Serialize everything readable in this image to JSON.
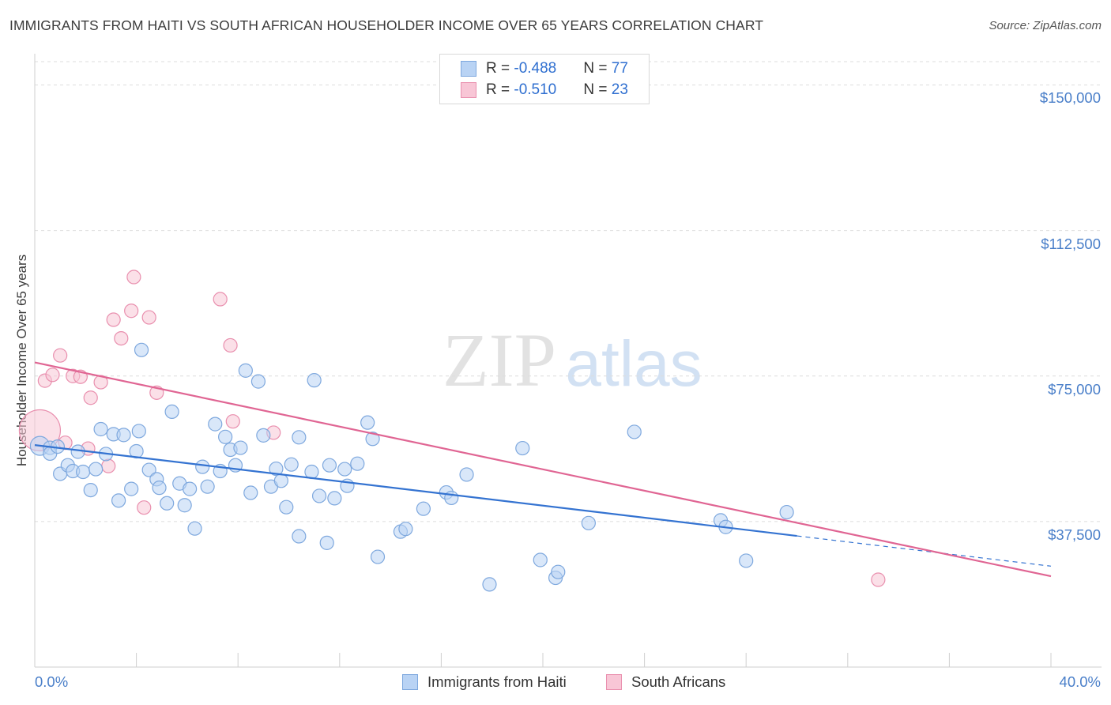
{
  "title": "IMMIGRANTS FROM HAITI VS SOUTH AFRICAN HOUSEHOLDER INCOME OVER 65 YEARS CORRELATION CHART",
  "source": "Source: ZipAtlas.com",
  "watermark": {
    "zip": "ZIP",
    "atlas": "atlas"
  },
  "legend": {
    "rows": [
      {
        "r_label": "R = ",
        "r_value": "-0.488",
        "n_label": "N = ",
        "n_value": "77"
      },
      {
        "r_label": "R = ",
        "r_value": "-0.510",
        "n_label": "N = ",
        "n_value": "23"
      }
    ]
  },
  "colors": {
    "haiti_fill": "#b9d3f4",
    "haiti_stroke": "#7ea8de",
    "haiti_line": "#3473d1",
    "sa_fill": "#f8c6d6",
    "sa_stroke": "#e98fae",
    "sa_line": "#e06593",
    "axis_text": "#4a7fc9",
    "grid": "#dcdcdc"
  },
  "chart_data": {
    "type": "scatter",
    "title": "IMMIGRANTS FROM HAITI VS SOUTH AFRICAN HOUSEHOLDER INCOME OVER 65 YEARS CORRELATION CHART",
    "xlabel": "",
    "ylabel": "Householder Income Over 65 years",
    "xlim": [
      0,
      40
    ],
    "ylim": [
      0,
      156000
    ],
    "x_tick_labels": [
      "0.0%",
      "40.0%"
    ],
    "y_ticks": [
      37500,
      75000,
      112500,
      150000
    ],
    "y_tick_labels": [
      "$37,500",
      "$75,000",
      "$112,500",
      "$150,000"
    ],
    "grid": "horizontal dashed",
    "legend_position": "top-center",
    "series": [
      {
        "name": "Immigrants from Haiti",
        "r": -0.488,
        "n": 77,
        "trend": {
          "x0": 0,
          "y0": 57200,
          "x1": 30,
          "y1": 33800,
          "dashed_to_x": 40,
          "dashed_to_y": 26000
        },
        "points": [
          [
            0.2,
            57000
          ],
          [
            0.6,
            56500
          ],
          [
            0.6,
            55000
          ],
          [
            0.9,
            56800
          ],
          [
            1.0,
            49800
          ],
          [
            1.3,
            52000
          ],
          [
            1.5,
            50500
          ],
          [
            1.7,
            55500
          ],
          [
            1.9,
            50300
          ],
          [
            2.2,
            45600
          ],
          [
            2.4,
            51000
          ],
          [
            2.6,
            61300
          ],
          [
            2.8,
            54900
          ],
          [
            3.1,
            60000
          ],
          [
            3.3,
            42900
          ],
          [
            3.5,
            59800
          ],
          [
            3.8,
            45900
          ],
          [
            4.0,
            55600
          ],
          [
            4.1,
            60800
          ],
          [
            4.2,
            81700
          ],
          [
            4.5,
            50800
          ],
          [
            4.8,
            48400
          ],
          [
            4.9,
            46200
          ],
          [
            5.2,
            42200
          ],
          [
            5.4,
            65800
          ],
          [
            5.7,
            47300
          ],
          [
            5.9,
            41700
          ],
          [
            6.1,
            45900
          ],
          [
            6.3,
            35700
          ],
          [
            6.6,
            51600
          ],
          [
            6.8,
            46500
          ],
          [
            7.1,
            62600
          ],
          [
            7.3,
            50500
          ],
          [
            7.5,
            59300
          ],
          [
            7.7,
            56000
          ],
          [
            7.9,
            52000
          ],
          [
            8.1,
            56500
          ],
          [
            8.3,
            76400
          ],
          [
            8.5,
            44900
          ],
          [
            8.8,
            73600
          ],
          [
            9.0,
            59700
          ],
          [
            9.3,
            46500
          ],
          [
            9.5,
            51100
          ],
          [
            9.7,
            48000
          ],
          [
            9.9,
            41200
          ],
          [
            10.1,
            52200
          ],
          [
            10.4,
            59200
          ],
          [
            10.4,
            33700
          ],
          [
            10.9,
            50300
          ],
          [
            11.0,
            73900
          ],
          [
            11.2,
            44100
          ],
          [
            11.5,
            32000
          ],
          [
            11.6,
            52000
          ],
          [
            11.8,
            43500
          ],
          [
            12.2,
            51000
          ],
          [
            12.3,
            46700
          ],
          [
            12.7,
            52400
          ],
          [
            13.1,
            63000
          ],
          [
            13.3,
            58800
          ],
          [
            13.5,
            28400
          ],
          [
            14.4,
            34900
          ],
          [
            14.6,
            35600
          ],
          [
            15.3,
            40800
          ],
          [
            16.2,
            45000
          ],
          [
            16.4,
            43600
          ],
          [
            17.0,
            49600
          ],
          [
            17.9,
            21300
          ],
          [
            19.2,
            56400
          ],
          [
            19.9,
            27600
          ],
          [
            20.5,
            23000
          ],
          [
            20.6,
            24500
          ],
          [
            21.8,
            37100
          ],
          [
            23.6,
            60600
          ],
          [
            27.0,
            37800
          ],
          [
            27.2,
            36100
          ],
          [
            28.0,
            27400
          ],
          [
            29.6,
            39900
          ]
        ]
      },
      {
        "name": "South Africans",
        "r": -0.51,
        "n": 23,
        "trend": {
          "x0": 0,
          "y0": 78500,
          "x1": 40,
          "y1": 23400
        },
        "points": [
          [
            0.2,
            61000
          ],
          [
            0.4,
            73800
          ],
          [
            0.7,
            75300
          ],
          [
            1.0,
            80300
          ],
          [
            1.2,
            57800
          ],
          [
            1.5,
            75000
          ],
          [
            1.8,
            74800
          ],
          [
            2.1,
            56300
          ],
          [
            2.2,
            69400
          ],
          [
            2.6,
            73400
          ],
          [
            2.9,
            51800
          ],
          [
            3.1,
            89500
          ],
          [
            3.4,
            84700
          ],
          [
            3.8,
            91800
          ],
          [
            3.9,
            100500
          ],
          [
            4.3,
            41100
          ],
          [
            4.5,
            90100
          ],
          [
            4.8,
            70700
          ],
          [
            7.3,
            94800
          ],
          [
            7.7,
            82900
          ],
          [
            7.8,
            63300
          ],
          [
            9.4,
            60400
          ],
          [
            33.2,
            22500
          ]
        ]
      }
    ]
  },
  "bottom_legend": {
    "haiti_label": "Immigrants from Haiti",
    "sa_label": "South Africans"
  }
}
